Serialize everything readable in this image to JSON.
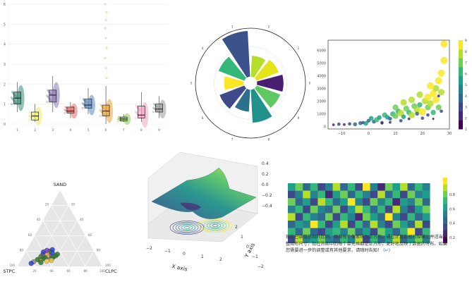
{
  "chart_data": [
    {
      "type": "box",
      "categories": [
        "1",
        "2",
        "3",
        "4",
        "5",
        "6",
        "7",
        "8",
        "9"
      ],
      "ylim": [
        0,
        6
      ],
      "yticks": [
        "0",
        "1",
        "2",
        "3",
        "4",
        "5",
        "6"
      ],
      "series": [
        {
          "values": [
            0.6,
            1.0,
            1.3,
            1.6,
            2.1
          ],
          "color": "#3d8b7a"
        },
        {
          "values": [
            0.1,
            0.2,
            0.4,
            0.6,
            1.0
          ],
          "color": "#f0ec62"
        },
        {
          "values": [
            0.6,
            1.1,
            1.45,
            1.7,
            2.4
          ],
          "color": "#8a79b4"
        },
        {
          "values": [
            0.3,
            0.55,
            0.65,
            0.85,
            1.1
          ],
          "color": "#e36b6b"
        },
        {
          "values": [
            0.5,
            0.8,
            0.95,
            1.25,
            1.8
          ],
          "color": "#5a8bc1"
        },
        {
          "values": [
            0.0,
            0.4,
            0.65,
            0.95,
            1.9
          ],
          "color": "#e8a33b"
        },
        {
          "values": [
            0.1,
            0.15,
            0.25,
            0.35,
            0.5
          ],
          "color": "#8cc85a"
        },
        {
          "values": [
            0.1,
            0.3,
            0.45,
            0.9,
            1.6
          ],
          "color": "#f2a2c4"
        },
        {
          "values": [
            0.3,
            0.6,
            0.75,
            1.0,
            1.4
          ],
          "color": "#9a9a9a"
        }
      ]
    },
    {
      "type": "polar-bar",
      "angle_ticks": [
        "0",
        "1",
        "2",
        "3",
        "4",
        "5",
        "6",
        "7",
        "8",
        "9"
      ],
      "values": [
        0.6,
        0.55,
        0.5,
        0.95,
        0.62,
        0.48,
        0.6,
        0.52,
        0.72,
        0.58
      ],
      "colors": [
        "#481f70",
        "#e5e419",
        "#b5de2b",
        "#3b528b",
        "#35b779",
        "#fde725",
        "#3e4a89",
        "#2d708e",
        "#21918c",
        "#5ec962"
      ],
      "rlim": [
        0,
        1
      ]
    },
    {
      "type": "scatter",
      "xlim": [
        -15,
        30
      ],
      "ylim": [
        -200,
        6800
      ],
      "xticks": [
        "−10",
        "0",
        "10",
        "20",
        "30"
      ],
      "yticks": [
        "0",
        "1000",
        "2000",
        "3000",
        "4000",
        "5000",
        "6000"
      ],
      "colorbar_ticks": [
        "1",
        "2",
        "3",
        "4",
        "5",
        "6",
        "7",
        "8",
        "9"
      ],
      "points": [
        [
          -13,
          130,
          2
        ],
        [
          -11,
          180,
          3
        ],
        [
          -9,
          150,
          2
        ],
        [
          -7,
          200,
          3
        ],
        [
          -5,
          170,
          4
        ],
        [
          -3,
          260,
          4
        ],
        [
          -2,
          300,
          3
        ],
        [
          -1,
          240,
          5
        ],
        [
          0,
          450,
          4
        ],
        [
          1,
          640,
          5
        ],
        [
          2,
          380,
          4
        ],
        [
          3,
          520,
          6
        ],
        [
          4,
          700,
          5
        ],
        [
          5,
          300,
          3
        ],
        [
          6,
          900,
          6
        ],
        [
          7,
          720,
          5
        ],
        [
          8,
          610,
          4
        ],
        [
          9,
          980,
          6
        ],
        [
          10,
          820,
          7
        ],
        [
          11,
          1200,
          6
        ],
        [
          12,
          1050,
          8
        ],
        [
          13,
          760,
          5
        ],
        [
          14,
          1400,
          7
        ],
        [
          15,
          1100,
          6
        ],
        [
          16,
          900,
          8
        ],
        [
          17,
          1600,
          7
        ],
        [
          18,
          1300,
          8
        ],
        [
          19,
          1700,
          6
        ],
        [
          20,
          1150,
          9
        ],
        [
          21,
          2000,
          8
        ],
        [
          22,
          1500,
          7
        ],
        [
          22,
          2300,
          9
        ],
        [
          23,
          1800,
          8
        ],
        [
          24,
          2600,
          9
        ],
        [
          24,
          1100,
          6
        ],
        [
          25,
          3000,
          8
        ],
        [
          25,
          2100,
          9
        ],
        [
          26,
          3600,
          9
        ],
        [
          26,
          1500,
          7
        ],
        [
          27,
          4200,
          9
        ],
        [
          27,
          2700,
          8
        ],
        [
          28,
          5200,
          9
        ],
        [
          28,
          6500,
          9
        ],
        [
          23,
          3200,
          9
        ],
        [
          19,
          2500,
          8
        ],
        [
          16,
          2100,
          8
        ],
        [
          26,
          2400,
          2
        ],
        [
          24,
          600,
          1
        ],
        [
          27,
          1200,
          3
        ],
        [
          20,
          650,
          3
        ],
        [
          15,
          600,
          2
        ],
        [
          12,
          450,
          3
        ],
        [
          8,
          320,
          2
        ],
        [
          5,
          250,
          2
        ],
        [
          18,
          1000,
          4
        ],
        [
          22,
          900,
          3
        ],
        [
          10,
          1500,
          7
        ],
        [
          13,
          1900,
          8
        ]
      ]
    },
    {
      "type": "ternary",
      "axes": [
        "SAND",
        "STPC",
        "CLPC"
      ],
      "ticks": [
        "20",
        "40",
        "60",
        "80",
        "100"
      ],
      "points": [
        [
          0.15,
          0.55,
          0.3,
          "#7a3cc4"
        ],
        [
          0.12,
          0.6,
          0.28,
          "#2a3fd6"
        ],
        [
          0.1,
          0.65,
          0.25,
          "#2e7d32"
        ],
        [
          0.08,
          0.7,
          0.22,
          "#e8a33b"
        ],
        [
          0.18,
          0.5,
          0.32,
          "#2a3fd6"
        ],
        [
          0.2,
          0.52,
          0.28,
          "#2e7d32"
        ],
        [
          0.14,
          0.58,
          0.28,
          "#f5c24a"
        ],
        [
          0.11,
          0.62,
          0.27,
          "#2e7d32"
        ],
        [
          0.16,
          0.62,
          0.22,
          "#7a3cc4"
        ],
        [
          0.22,
          0.48,
          0.3,
          "#2a3fd6"
        ],
        [
          0.09,
          0.72,
          0.19,
          "#2e7d32"
        ],
        [
          0.06,
          0.78,
          0.16,
          "#888888"
        ],
        [
          0.13,
          0.66,
          0.21,
          "#2e7d32"
        ],
        [
          0.17,
          0.57,
          0.26,
          "#e8a33b"
        ],
        [
          0.1,
          0.55,
          0.35,
          "#2e7d32"
        ],
        [
          0.07,
          0.62,
          0.31,
          "#f5c24a"
        ],
        [
          0.19,
          0.6,
          0.21,
          "#2a3fd6"
        ],
        [
          0.12,
          0.52,
          0.36,
          "#2e7d32"
        ],
        [
          0.05,
          0.7,
          0.25,
          "#2e7d32"
        ],
        [
          0.21,
          0.55,
          0.24,
          "#7a3cc4"
        ],
        [
          0.14,
          0.48,
          0.38,
          "#2e7d32"
        ],
        [
          0.08,
          0.56,
          0.36,
          "#f5c24a"
        ],
        [
          0.04,
          0.82,
          0.14,
          "#2a3fd6"
        ],
        [
          0.16,
          0.45,
          0.39,
          "#2e7d32"
        ]
      ]
    },
    {
      "type": "surface3d",
      "xlabel": "X axis",
      "ylabel": "Y axis",
      "xticks": [
        "−2",
        "−1",
        "0",
        "1",
        "2"
      ],
      "yticks": [
        "−2",
        "−1",
        "0",
        "1",
        "2"
      ],
      "zticks": [
        "−0.4",
        "−0.2",
        "0.0",
        "0.2",
        "0.4"
      ]
    },
    {
      "type": "heatmap",
      "rows": 8,
      "cols": 19,
      "colorbar_ticks": [
        "0.2",
        "0.4",
        "0.6",
        "0.8"
      ],
      "values": [
        [
          0.55,
          0.72,
          0.3,
          0.65,
          0.2,
          0.45,
          0.8,
          0.35,
          0.6,
          0.25,
          0.9,
          0.4,
          0.15,
          0.7,
          0.5,
          0.85,
          0.3,
          0.62,
          0.4
        ],
        [
          0.25,
          0.48,
          0.85,
          0.4,
          0.62,
          0.15,
          0.55,
          0.75,
          0.3,
          0.68,
          0.45,
          0.2,
          0.82,
          0.35,
          0.6,
          0.25,
          0.78,
          0.45,
          0.55
        ],
        [
          0.7,
          0.3,
          0.55,
          0.2,
          0.88,
          0.65,
          0.35,
          0.5,
          0.92,
          0.4,
          0.25,
          0.75,
          0.45,
          0.6,
          0.15,
          0.55,
          0.4,
          0.7,
          0.3
        ],
        [
          0.4,
          0.62,
          0.25,
          0.75,
          0.45,
          0.3,
          0.7,
          0.2,
          0.55,
          0.8,
          0.6,
          0.35,
          0.65,
          0.25,
          0.85,
          0.45,
          0.2,
          0.58,
          0.72
        ],
        [
          0.85,
          0.2,
          0.6,
          0.45,
          0.35,
          0.78,
          0.25,
          0.65,
          0.4,
          0.15,
          0.7,
          0.55,
          0.3,
          0.9,
          0.4,
          0.2,
          0.65,
          0.35,
          0.5
        ],
        [
          0.3,
          0.55,
          0.4,
          0.9,
          0.6,
          0.25,
          0.5,
          0.85,
          0.2,
          0.6,
          0.35,
          0.8,
          0.45,
          0.25,
          0.7,
          0.55,
          0.3,
          0.85,
          0.2
        ],
        [
          0.6,
          0.35,
          0.75,
          0.3,
          0.2,
          0.55,
          0.65,
          0.4,
          0.75,
          0.3,
          0.55,
          0.25,
          0.7,
          0.5,
          0.35,
          0.65,
          0.9,
          0.25,
          0.6
        ],
        [
          0.2,
          0.8,
          0.45,
          0.55,
          0.7,
          0.4,
          0.3,
          0.6,
          0.45,
          0.85,
          0.2,
          0.65,
          0.35,
          0.55,
          0.8,
          0.3,
          0.5,
          0.75,
          0.4
        ]
      ]
    }
  ],
  "caption": {
    "text": "现在已调整热图的比例，确保每个像素块为正方形。通过计算数据的纵横比并适当调整图形尺寸，现在热图中的每个单元格都是正方形，更好地反映了数据的分布。如果您需要进一步的调整或有其他要求，请随时告知！",
    "link": "(↩)"
  }
}
